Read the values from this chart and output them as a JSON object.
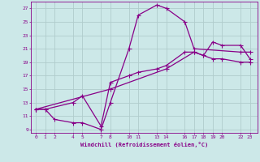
{
  "xlabel": "Windchill (Refroidissement éolien,°C)",
  "bg_color": "#cce8e8",
  "grid_color": "#b0cccc",
  "line_color": "#880088",
  "ylim": [
    8.5,
    28
  ],
  "xlim": [
    -0.5,
    23.8
  ],
  "yticks": [
    9,
    11,
    13,
    15,
    17,
    19,
    21,
    23,
    25,
    27
  ],
  "xticks": [
    0,
    1,
    2,
    4,
    5,
    7,
    8,
    10,
    11,
    13,
    14,
    16,
    17,
    18,
    19,
    20,
    22,
    23
  ],
  "series1_x": [
    0,
    1,
    2,
    4,
    5,
    7,
    8,
    10,
    11,
    13,
    14,
    16,
    17,
    22,
    23
  ],
  "series1_y": [
    12.0,
    12.0,
    10.5,
    10.0,
    10.0,
    9.0,
    13.0,
    21.0,
    26.0,
    27.5,
    27.0,
    25.0,
    21.0,
    20.5,
    20.5
  ],
  "series2_x": [
    0,
    1,
    4,
    5,
    7,
    8,
    10,
    11,
    13,
    14,
    16,
    17,
    18,
    19,
    20,
    22,
    23
  ],
  "series2_y": [
    12.0,
    12.0,
    13.0,
    14.0,
    9.5,
    16.0,
    17.0,
    17.5,
    18.0,
    18.5,
    20.5,
    20.5,
    20.0,
    19.5,
    19.5,
    19.0,
    19.0
  ],
  "series3_x": [
    0,
    8,
    14,
    17,
    18,
    19,
    20,
    22,
    23
  ],
  "series3_y": [
    12.0,
    15.0,
    18.0,
    20.5,
    20.0,
    22.0,
    21.5,
    21.5,
    19.5
  ]
}
